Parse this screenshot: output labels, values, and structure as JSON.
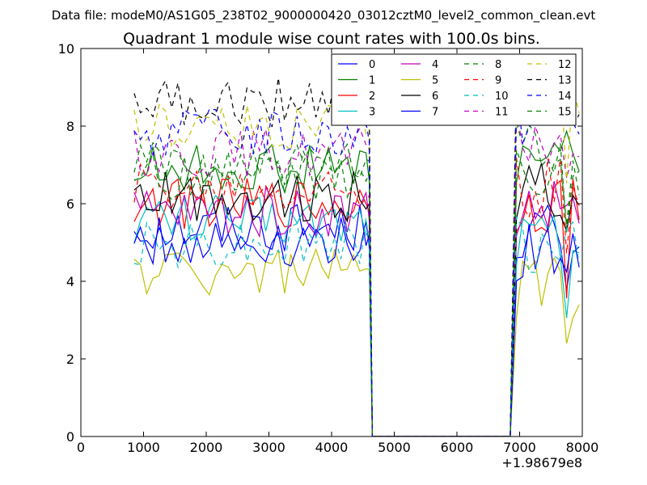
{
  "chart_data": {
    "type": "line",
    "suptitle": "Data file: modeM0/AS1G05_238T02_9000000420_03012cztM0_level2_common_clean.evt",
    "title": "Quadrant 1 module wise count rates with 100.0s bins.",
    "xlabel": "",
    "ylabel": "",
    "x_offset_label": "+1.98679e8",
    "xlim": [
      0,
      8000
    ],
    "ylim": [
      0,
      10
    ],
    "x_ticks": [
      0,
      1000,
      2000,
      3000,
      4000,
      5000,
      6000,
      7000,
      8000
    ],
    "x_tick_labels": [
      "0",
      "1000",
      "2000",
      "3000",
      "4000",
      "5000",
      "6000",
      "7000",
      "8000"
    ],
    "y_ticks": [
      0,
      2,
      4,
      6,
      8,
      10
    ],
    "y_tick_labels": [
      "0",
      "2",
      "4",
      "6",
      "8",
      "10"
    ],
    "grid": false,
    "legend_position": "top-right",
    "segments": {
      "first_start": 850,
      "first_end": 4550,
      "gap_start": 4650,
      "gap_end": 6850,
      "second_start": 6950,
      "second_end": 8000,
      "step": 100
    },
    "series": [
      {
        "name": "0",
        "color": "#0000ff",
        "style": "solid",
        "level": 5.4,
        "drop_value": 5.2
      },
      {
        "name": "1",
        "color": "#008000",
        "style": "solid",
        "level": 6.9,
        "drop_value": 6.6
      },
      {
        "name": "2",
        "color": "#ff0000",
        "style": "solid",
        "level": 6.0,
        "drop_value": 5.8
      },
      {
        "name": "3",
        "color": "#00bfbf",
        "style": "solid",
        "level": 5.6,
        "drop_value": 5.3
      },
      {
        "name": "4",
        "color": "#bf00bf",
        "style": "solid",
        "level": 5.8,
        "drop_value": 5.6
      },
      {
        "name": "5",
        "color": "#bfbf00",
        "style": "solid",
        "level": 4.25,
        "drop_value": 4.3
      },
      {
        "name": "6",
        "color": "#000000",
        "style": "solid",
        "level": 6.2,
        "drop_value": 6.0
      },
      {
        "name": "7",
        "color": "#0000ff",
        "style": "solid",
        "level": 5.0,
        "drop_value": 4.9
      },
      {
        "name": "8",
        "color": "#008000",
        "style": "dashed",
        "level": 7.0,
        "drop_value": 7.1
      },
      {
        "name": "9",
        "color": "#ff0000",
        "style": "dashed",
        "level": 6.4,
        "drop_value": 6.2
      },
      {
        "name": "10",
        "color": "#00bfbf",
        "style": "dashed",
        "level": 5.0,
        "drop_value": 5.0
      },
      {
        "name": "11",
        "color": "#bf00bf",
        "style": "dashed",
        "level": 7.3,
        "drop_value": 7.4
      },
      {
        "name": "12",
        "color": "#bfbf00",
        "style": "dashed",
        "level": 8.0,
        "drop_value": 7.9
      },
      {
        "name": "13",
        "color": "#000000",
        "style": "dashed",
        "level": 8.6,
        "drop_value": 8.6
      },
      {
        "name": "14",
        "color": "#0000ff",
        "style": "dashed",
        "level": 7.8,
        "drop_value": 7.6
      },
      {
        "name": "15",
        "color": "#008000",
        "style": "dashed",
        "level": 6.7,
        "drop_value": 6.8
      }
    ]
  }
}
